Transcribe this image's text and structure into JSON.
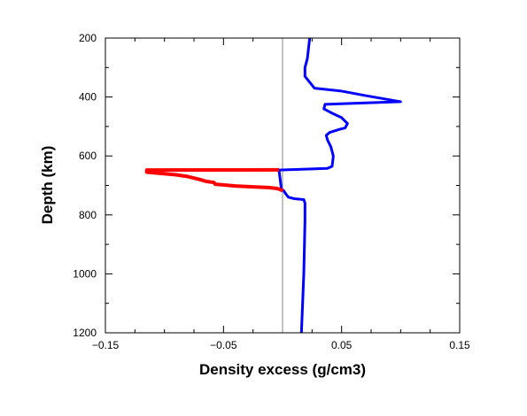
{
  "chart_data": {
    "type": "line",
    "title": "",
    "xlabel": "Density excess (g/cm3)",
    "ylabel": "Depth (km)",
    "xlim": [
      -0.15,
      0.15
    ],
    "ylim": [
      200,
      1200
    ],
    "y_inverted": true,
    "x_ticks": [
      -0.15,
      -0.05,
      0.05,
      0.15
    ],
    "x_tick_labels": [
      "−0.15",
      "−0.05",
      "0.05",
      "0.15"
    ],
    "y_ticks": [
      200,
      400,
      600,
      800,
      1000,
      1200
    ],
    "y_tick_labels": [
      "200",
      "400",
      "600",
      "800",
      "1000",
      "1200"
    ],
    "x_minor_step": 0.025,
    "y_minor_step": 100,
    "reference_line": {
      "x": 0,
      "color": "#999999"
    },
    "grid": false,
    "series": [
      {
        "color": "#0000ff",
        "points": [
          [
            0.023,
            200
          ],
          [
            0.021,
            270
          ],
          [
            0.019,
            300
          ],
          [
            0.019,
            330
          ],
          [
            0.023,
            350
          ],
          [
            0.027,
            370
          ],
          [
            0.05,
            380
          ],
          [
            0.07,
            395
          ],
          [
            0.1,
            416
          ],
          [
            0.036,
            425
          ],
          [
            0.035,
            440
          ],
          [
            0.042,
            455
          ],
          [
            0.05,
            470
          ],
          [
            0.055,
            490
          ],
          [
            0.053,
            505
          ],
          [
            0.048,
            510
          ],
          [
            0.04,
            520
          ],
          [
            0.037,
            530
          ],
          [
            0.038,
            545
          ],
          [
            0.041,
            570
          ],
          [
            0.043,
            600
          ],
          [
            0.042,
            635
          ],
          [
            0.038,
            642
          ],
          [
            -0.003,
            648
          ],
          [
            -0.001,
            712
          ],
          [
            0.001,
            718
          ],
          [
            0.003,
            730
          ],
          [
            0.005,
            740
          ],
          [
            0.01,
            745
          ],
          [
            0.018,
            748
          ],
          [
            0.019,
            760
          ],
          [
            0.019,
            820
          ],
          [
            0.018,
            1000
          ],
          [
            0.016,
            1200
          ]
        ]
      },
      {
        "color": "#ff0000",
        "points": [
          [
            -0.003,
            647
          ],
          [
            -0.115,
            648
          ],
          [
            -0.115,
            655
          ],
          [
            -0.09,
            664
          ],
          [
            -0.08,
            670
          ],
          [
            -0.075,
            675
          ],
          [
            -0.07,
            680
          ],
          [
            -0.065,
            686
          ],
          [
            -0.058,
            690
          ],
          [
            -0.057,
            696
          ],
          [
            -0.045,
            700
          ],
          [
            -0.04,
            702
          ],
          [
            -0.025,
            705
          ],
          [
            -0.012,
            707
          ],
          [
            -0.005,
            710
          ],
          [
            -0.001,
            715
          ],
          [
            0.0,
            720
          ]
        ]
      }
    ]
  }
}
